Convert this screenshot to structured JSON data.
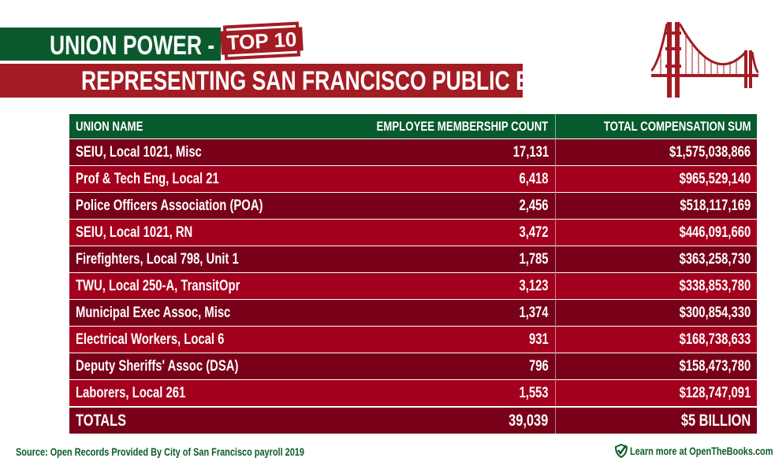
{
  "header": {
    "title_line1": "UNION POWER -",
    "stamp": "TOP 10",
    "title_line2": "REPRESENTING SAN FRANCISCO  PUBLIC EMPLOYEES",
    "logo_icon": "golden-gate-bridge-icon"
  },
  "colors": {
    "green": "#0a5a2e",
    "red": "#a31c23",
    "row_dark": "#780019",
    "row_light": "#a3001e"
  },
  "chart_data": {
    "type": "table",
    "columns": [
      "UNION NAME",
      "EMPLOYEE MEMBERSHIP COUNT",
      "TOTAL COMPENSATION SUM"
    ],
    "rows": [
      [
        "SEIU, Local 1021, Misc",
        "17,131",
        "$1,575,038,866"
      ],
      [
        "Prof & Tech Eng, Local 21",
        "6,418",
        "$965,529,140"
      ],
      [
        "Police Officers Association (POA)",
        "2,456",
        "$518,117,169"
      ],
      [
        "SEIU, Local 1021, RN",
        "3,472",
        "$446,091,660"
      ],
      [
        "Firefighters, Local 798, Unit 1",
        "1,785",
        "$363,258,730"
      ],
      [
        "TWU, Local 250-A, TransitOpr",
        "3,123",
        "$338,853,780"
      ],
      [
        "Municipal Exec Assoc, Misc",
        "1,374",
        "$300,854,330"
      ],
      [
        "Electrical Workers, Local 6",
        "931",
        "$168,738,633"
      ],
      [
        "Deputy Sheriffs' Assoc (DSA)",
        "796",
        "$158,473,780"
      ],
      [
        "Laborers, Local 261",
        "1,553",
        "$128,747,091"
      ]
    ],
    "totals": [
      "TOTALS",
      "39,039",
      "$5 BILLION"
    ]
  },
  "footer": {
    "source": "Source: Open Records Provided By City of San Francisco payroll 2019",
    "learn_more": "Learn more at OpenTheBooks.com",
    "learn_icon": "shield-check-icon"
  }
}
